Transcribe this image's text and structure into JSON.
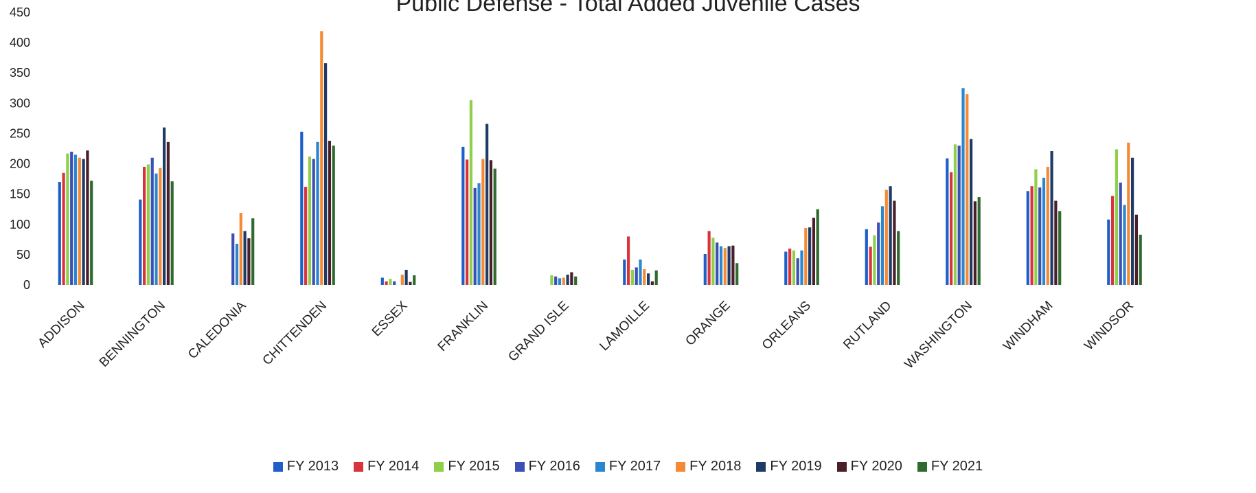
{
  "chart_data": {
    "type": "bar",
    "title": "Public Defense - Total Added Juvenile Cases",
    "xlabel": "",
    "ylabel": "",
    "ylim": [
      0,
      450
    ],
    "yticks": [
      0,
      50,
      100,
      150,
      200,
      250,
      300,
      350,
      400,
      450
    ],
    "grid": false,
    "legend_position": "bottom",
    "categories": [
      "ADDISON",
      "BENNINGTON",
      "CALEDONIA",
      "CHITTENDEN",
      "ESSEX",
      "FRANKLIN",
      "GRAND ISLE",
      "LAMOILLE",
      "ORANGE",
      "ORLEANS",
      "RUTLAND",
      "WASHINGTON",
      "WINDHAM",
      "WINDSOR"
    ],
    "series": [
      {
        "name": "FY 2013",
        "color": "#1f5fc8",
        "values": [
          170,
          141,
          0,
          253,
          12,
          228,
          0,
          42,
          51,
          55,
          92,
          209,
          155,
          108
        ]
      },
      {
        "name": "FY 2014",
        "color": "#d8343c",
        "values": [
          185,
          195,
          0,
          162,
          6,
          207,
          0,
          80,
          89,
          60,
          63,
          186,
          163,
          147
        ]
      },
      {
        "name": "FY 2015",
        "color": "#8fcf4a",
        "values": [
          217,
          199,
          0,
          212,
          10,
          305,
          16,
          25,
          78,
          57,
          82,
          232,
          191,
          224
        ]
      },
      {
        "name": "FY 2016",
        "color": "#3c4fb5",
        "values": [
          220,
          210,
          85,
          208,
          6,
          160,
          14,
          29,
          70,
          44,
          103,
          230,
          161,
          169
        ]
      },
      {
        "name": "FY 2017",
        "color": "#2b86cf",
        "values": [
          215,
          184,
          68,
          236,
          0,
          168,
          11,
          42,
          64,
          57,
          130,
          325,
          177,
          132
        ]
      },
      {
        "name": "FY 2018",
        "color": "#f48a34",
        "values": [
          210,
          193,
          119,
          419,
          17,
          208,
          12,
          26,
          61,
          94,
          157,
          315,
          195,
          235
        ]
      },
      {
        "name": "FY 2019",
        "color": "#1d3b66",
        "values": [
          208,
          260,
          89,
          366,
          25,
          266,
          17,
          19,
          64,
          95,
          163,
          241,
          221,
          210
        ]
      },
      {
        "name": "FY 2020",
        "color": "#4a1f2a",
        "values": [
          222,
          236,
          77,
          238,
          5,
          206,
          21,
          6,
          65,
          111,
          139,
          138,
          139,
          116
        ]
      },
      {
        "name": "FY 2021",
        "color": "#2f6b2e",
        "values": [
          172,
          171,
          110,
          230,
          16,
          192,
          14,
          24,
          36,
          125,
          89,
          145,
          122,
          83
        ]
      }
    ]
  }
}
